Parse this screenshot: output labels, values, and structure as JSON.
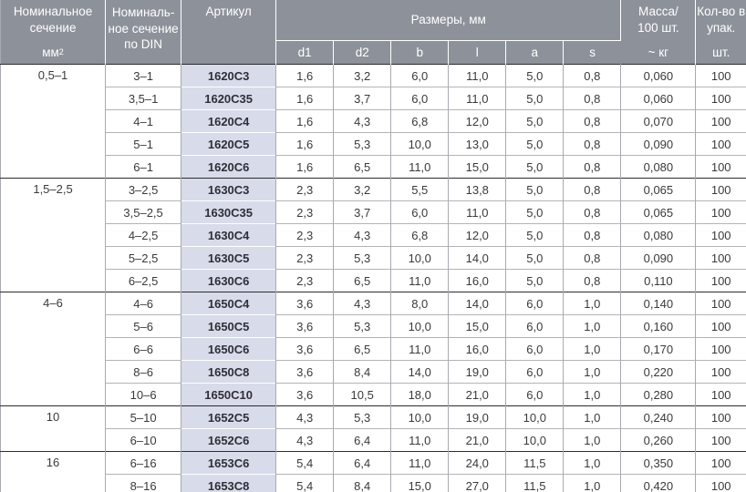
{
  "table": {
    "header": {
      "nominal": {
        "title": "Номинальное\nсечение",
        "unit": "мм",
        "unit_sup": "2"
      },
      "din": {
        "title": "Номиналь-\nное сечение\nпо DIN"
      },
      "article": {
        "title": "Артикул"
      },
      "dimensions": {
        "title": "Размеры, мм",
        "subcols": [
          "d1",
          "d2",
          "b",
          "l",
          "a",
          "s"
        ]
      },
      "mass": {
        "title": "Масса/\n100 шт.",
        "unit": "~ кг"
      },
      "qty": {
        "title": "Кол-во в\nупак.",
        "unit": "шт."
      }
    },
    "groups": [
      {
        "section": "0,5–1",
        "rows": [
          {
            "din": "3–1",
            "article": "1620C3",
            "d1": "1,6",
            "d2": "3,2",
            "b": "6,0",
            "l": "11,0",
            "a": "5,0",
            "s": "0,8",
            "mass": "0,060",
            "qty": "100"
          },
          {
            "din": "3,5–1",
            "article": "1620C35",
            "d1": "1,6",
            "d2": "3,7",
            "b": "6,0",
            "l": "11,0",
            "a": "5,0",
            "s": "0,8",
            "mass": "0,060",
            "qty": "100"
          },
          {
            "din": "4–1",
            "article": "1620C4",
            "d1": "1,6",
            "d2": "4,3",
            "b": "6,8",
            "l": "12,0",
            "a": "5,0",
            "s": "0,8",
            "mass": "0,070",
            "qty": "100"
          },
          {
            "din": "5–1",
            "article": "1620C5",
            "d1": "1,6",
            "d2": "5,3",
            "b": "10,0",
            "l": "13,0",
            "a": "5,0",
            "s": "0,8",
            "mass": "0,090",
            "qty": "100"
          },
          {
            "din": "6–1",
            "article": "1620C6",
            "d1": "1,6",
            "d2": "6,5",
            "b": "11,0",
            "l": "15,0",
            "a": "5,0",
            "s": "0,8",
            "mass": "0,080",
            "qty": "100"
          }
        ]
      },
      {
        "section": "1,5–2,5",
        "rows": [
          {
            "din": "3–2,5",
            "article": "1630C3",
            "d1": "2,3",
            "d2": "3,2",
            "b": "5,5",
            "l": "13,8",
            "a": "5,0",
            "s": "0,8",
            "mass": "0,065",
            "qty": "100"
          },
          {
            "din": "3,5–2,5",
            "article": "1630C35",
            "d1": "2,3",
            "d2": "3,7",
            "b": "6,0",
            "l": "11,0",
            "a": "5,0",
            "s": "0,8",
            "mass": "0,065",
            "qty": "100"
          },
          {
            "din": "4–2,5",
            "article": "1630C4",
            "d1": "2,3",
            "d2": "4,3",
            "b": "6,8",
            "l": "12,0",
            "a": "5,0",
            "s": "0,8",
            "mass": "0,080",
            "qty": "100"
          },
          {
            "din": "5–2,5",
            "article": "1630C5",
            "d1": "2,3",
            "d2": "5,3",
            "b": "10,0",
            "l": "14,0",
            "a": "5,0",
            "s": "0,8",
            "mass": "0,090",
            "qty": "100"
          },
          {
            "din": "6–2,5",
            "article": "1630C6",
            "d1": "2,3",
            "d2": "6,5",
            "b": "11,0",
            "l": "16,0",
            "a": "5,0",
            "s": "0,8",
            "mass": "0,110",
            "qty": "100"
          }
        ]
      },
      {
        "section": "4–6",
        "rows": [
          {
            "din": "4–6",
            "article": "1650C4",
            "d1": "3,6",
            "d2": "4,3",
            "b": "8,0",
            "l": "14,0",
            "a": "6,0",
            "s": "1,0",
            "mass": "0,140",
            "qty": "100"
          },
          {
            "din": "5–6",
            "article": "1650C5",
            "d1": "3,6",
            "d2": "5,3",
            "b": "10,0",
            "l": "15,0",
            "a": "6,0",
            "s": "1,0",
            "mass": "0,160",
            "qty": "100"
          },
          {
            "din": "6–6",
            "article": "1650C6",
            "d1": "3,6",
            "d2": "6,5",
            "b": "11,0",
            "l": "16,0",
            "a": "6,0",
            "s": "1,0",
            "mass": "0,170",
            "qty": "100"
          },
          {
            "din": "8–6",
            "article": "1650C8",
            "d1": "3,6",
            "d2": "8,4",
            "b": "14,0",
            "l": "19,0",
            "a": "6,0",
            "s": "1,0",
            "mass": "0,220",
            "qty": "100"
          },
          {
            "din": "10–6",
            "article": "1650C10",
            "d1": "3,6",
            "d2": "10,5",
            "b": "18,0",
            "l": "21,0",
            "a": "6,0",
            "s": "1,0",
            "mass": "0,280",
            "qty": "100"
          }
        ]
      },
      {
        "section": "10",
        "rows": [
          {
            "din": "5–10",
            "article": "1652C5",
            "d1": "4,3",
            "d2": "5,3",
            "b": "10,0",
            "l": "19,0",
            "a": "10,0",
            "s": "1,0",
            "mass": "0,240",
            "qty": "100"
          },
          {
            "din": "6–10",
            "article": "1652C6",
            "d1": "4,3",
            "d2": "6,4",
            "b": "11,0",
            "l": "21,0",
            "a": "10,0",
            "s": "1,0",
            "mass": "0,260",
            "qty": "100"
          }
        ]
      },
      {
        "section": "16",
        "rows": [
          {
            "din": "6–16",
            "article": "1653C6",
            "d1": "5,4",
            "d2": "6,4",
            "b": "11,0",
            "l": "24,0",
            "a": "11,5",
            "s": "1,0",
            "mass": "0,350",
            "qty": "100"
          },
          {
            "din": "8–16",
            "article": "1653C8",
            "d1": "5,4",
            "d2": "8,4",
            "b": "15,0",
            "l": "27,0",
            "a": "11,5",
            "s": "1,0",
            "mass": "0,420",
            "qty": "100"
          }
        ]
      }
    ]
  },
  "colors": {
    "header_bg": "#8d929a",
    "header_text": "#ffffff",
    "article_bg": "#d8dbe9",
    "article_text": "#2e2f38",
    "body_text": "#3a3a3c",
    "grid_light": "#b2b4b8",
    "grid_vertical": "#a6aab0",
    "grid_dark": "#2c2c2f"
  }
}
